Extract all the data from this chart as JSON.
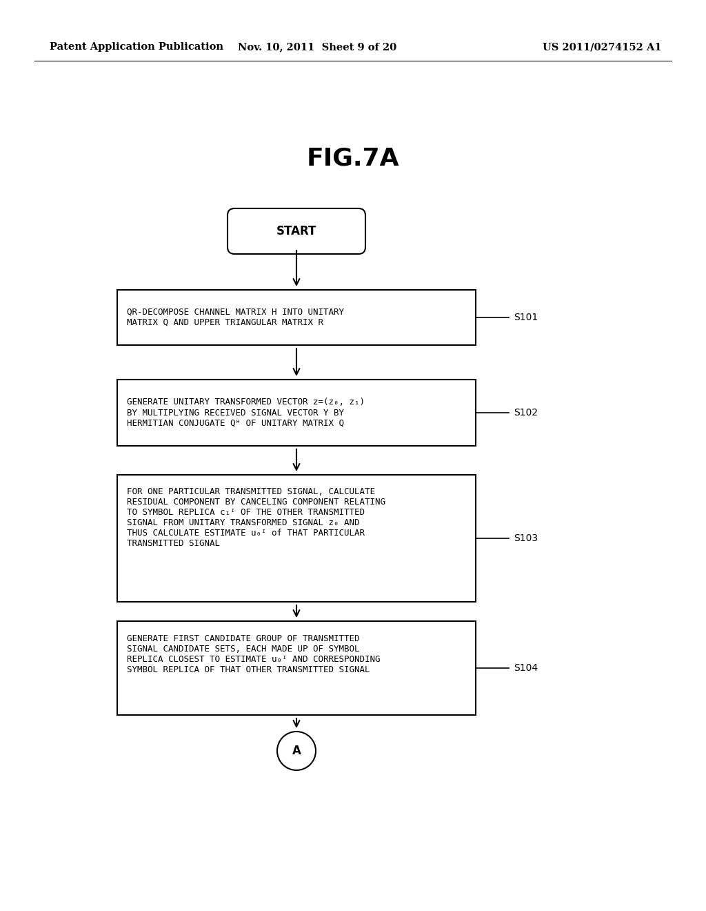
{
  "title": "FIG.7A",
  "header_left": "Patent Application Publication",
  "header_center": "Nov. 10, 2011  Sheet 9 of 20",
  "header_right": "US 2011/0274152 A1",
  "background_color": "#ffffff",
  "box_edge_color": "#000000",
  "text_color": "#000000",
  "arrow_color": "#000000",
  "start_label": "START",
  "steps": [
    {
      "label": "QR-DECOMPOSE CHANNEL MATRIX H INTO UNITARY\nMATRIX Q AND UPPER TRIANGULAR MATRIX R",
      "tag": "S101"
    },
    {
      "label": "GENERATE UNITARY TRANSFORMED VECTOR z=(z₀, z₁)\nBY MULTIPLYING RECEIVED SIGNAL VECTOR Y BY\nHERMITIAN CONJUGATE Qᴴ OF UNITARY MATRIX Q",
      "tag": "S102"
    },
    {
      "label": "FOR ONE PARTICULAR TRANSMITTED SIGNAL, CALCULATE\nRESIDUAL COMPONENT BY CANCELING COMPONENT RELATING\nTO SYMBOL REPLICA c₁ᴵ OF THE OTHER TRANSMITTED\nSIGNAL FROM UNITARY TRANSFORMED SIGNAL z₀ AND\nTHUS CALCULATE ESTIMATE u₀ᴵ of THAT PARTICULAR\nTRANSMITTED SIGNAL",
      "tag": "S103"
    },
    {
      "label": "GENERATE FIRST CANDIDATE GROUP OF TRANSMITTED\nSIGNAL CANDIDATE SETS, EACH MADE UP OF SYMBOL\nREPLICA CLOSEST TO ESTIMATE u₀ᴵ AND CORRESPONDING\nSYMBOL REPLICA OF THAT OTHER TRANSMITTED SIGNAL",
      "tag": "S104"
    }
  ],
  "end_label": "A",
  "title_fontsize": 26,
  "header_fontsize": 10.5,
  "step_fontsize": 9,
  "tag_fontsize": 10
}
